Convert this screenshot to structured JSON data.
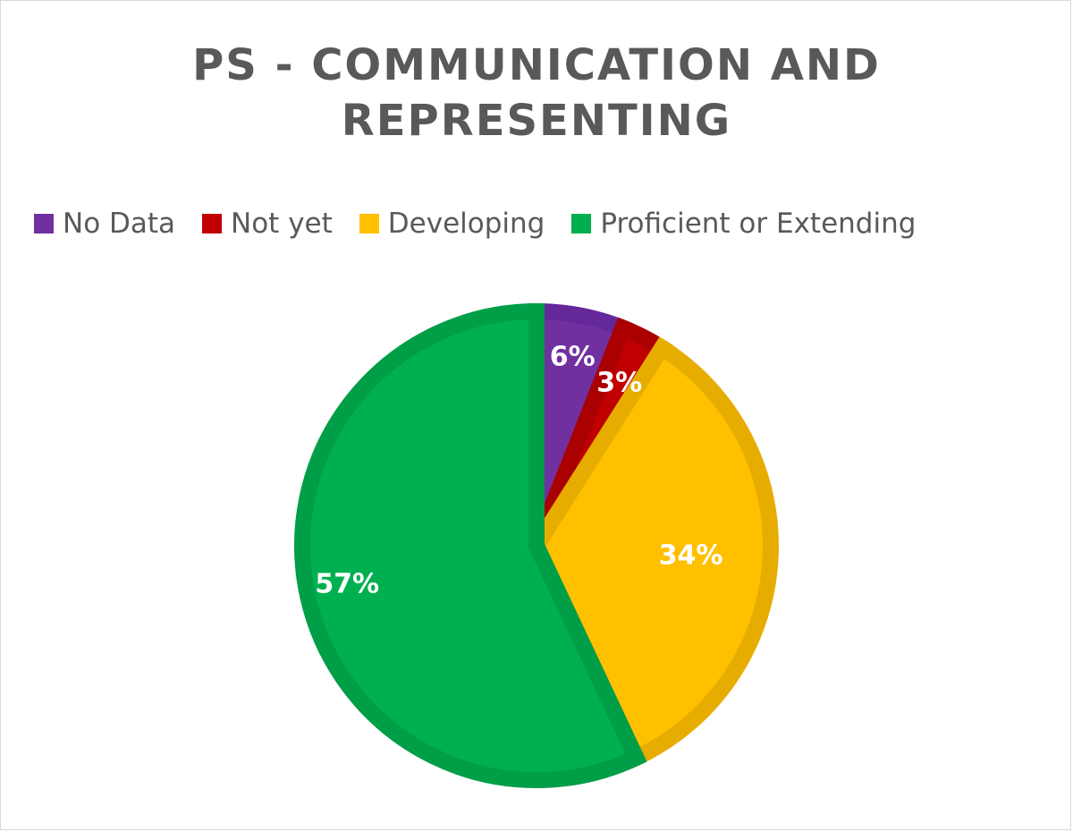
{
  "chart_data": {
    "type": "pie",
    "title_lines": [
      "PS - COMMUNICATION AND",
      "REPRESENTING"
    ],
    "categories": [
      "No Data",
      "Not yet",
      "Developing",
      "Proficient or Extending"
    ],
    "values": [
      6,
      3,
      34,
      57
    ],
    "data_labels": [
      "6%",
      "3%",
      "34%",
      "57%"
    ],
    "colors": [
      "#7030a0",
      "#c00000",
      "#ffc000",
      "#00b050"
    ],
    "border_colors": [
      "#64289a",
      "#ab0000",
      "#e6ad00",
      "#009e47"
    ],
    "legend_position": "top",
    "start_angle": "12 o'clock, clockwise"
  }
}
